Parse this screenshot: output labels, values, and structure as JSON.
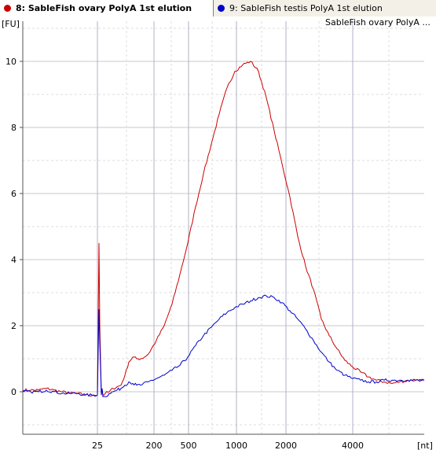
{
  "tabs": [
    {
      "label": "8: SableFish ovary PolyA 1st elution",
      "color": "#cc0000",
      "active": true
    },
    {
      "label": "9: SableFish testis PolyA 1st elution",
      "color": "#0000cc",
      "active": false
    }
  ],
  "chart_data": {
    "type": "line",
    "title": "SableFish ovary PolyA ...",
    "ylabel": "[FU]",
    "xlabel": "[nt]",
    "ylim": [
      -1.3,
      11.3
    ],
    "yticks": [
      0,
      2,
      4,
      6,
      8,
      10
    ],
    "xticks": [
      "25",
      "200",
      "500",
      "1000",
      "2000",
      "4000"
    ],
    "grid": true,
    "series": [
      {
        "name": "8: SableFish ovary PolyA 1st elution",
        "color": "#cc0000",
        "x": [
          0,
          10,
          20,
          30,
          40,
          50,
          60,
          70,
          80,
          90,
          95,
          97,
          98,
          100,
          101,
          102,
          103,
          105,
          110,
          115,
          120,
          125,
          130,
          135,
          140,
          145,
          150,
          155,
          160,
          170,
          180,
          190,
          200,
          210,
          220,
          230,
          240,
          250,
          260,
          270,
          280,
          290,
          300,
          310,
          320,
          330,
          340,
          350,
          360,
          370,
          380,
          390,
          400,
          410,
          420,
          430,
          440,
          450,
          460,
          470,
          480,
          490,
          500,
          511
        ],
        "y": [
          0.05,
          0.05,
          0.05,
          0.1,
          0.05,
          0.0,
          -0.05,
          -0.05,
          -0.1,
          -0.1,
          -0.1,
          4.5,
          2.0,
          -0.05,
          0.05,
          -0.1,
          -0.1,
          -0.05,
          0.0,
          0.1,
          0.15,
          0.2,
          0.5,
          0.9,
          1.05,
          1.0,
          1.0,
          1.05,
          1.15,
          1.55,
          2.0,
          2.65,
          3.55,
          4.5,
          5.6,
          6.6,
          7.5,
          8.4,
          9.2,
          9.7,
          9.9,
          10.0,
          9.7,
          8.9,
          7.9,
          6.9,
          5.9,
          4.7,
          3.8,
          3.1,
          2.2,
          1.7,
          1.3,
          0.95,
          0.75,
          0.6,
          0.45,
          0.35,
          0.3,
          0.25,
          0.3,
          0.35,
          0.35,
          0.35
        ]
      },
      {
        "name": "9: SableFish testis PolyA 1st elution",
        "color": "#0000cc",
        "x": [
          0,
          10,
          20,
          30,
          40,
          50,
          60,
          70,
          80,
          90,
          95,
          97,
          98,
          100,
          101,
          102,
          105,
          110,
          115,
          120,
          125,
          130,
          135,
          140,
          145,
          150,
          160,
          170,
          180,
          190,
          200,
          210,
          220,
          230,
          240,
          250,
          260,
          270,
          280,
          290,
          300,
          310,
          320,
          330,
          340,
          350,
          360,
          370,
          380,
          390,
          400,
          410,
          420,
          430,
          440,
          450,
          460,
          470,
          480,
          490,
          500,
          511
        ],
        "y": [
          0.0,
          0.0,
          0.0,
          0.05,
          0.0,
          -0.05,
          -0.05,
          -0.05,
          -0.1,
          -0.1,
          -0.1,
          2.5,
          1.5,
          -0.1,
          0.1,
          -0.15,
          -0.15,
          -0.05,
          0.0,
          0.05,
          0.1,
          0.2,
          0.3,
          0.25,
          0.2,
          0.2,
          0.3,
          0.4,
          0.5,
          0.65,
          0.8,
          1.05,
          1.4,
          1.7,
          1.95,
          2.2,
          2.4,
          2.55,
          2.65,
          2.75,
          2.85,
          2.9,
          2.85,
          2.7,
          2.45,
          2.2,
          1.9,
          1.55,
          1.2,
          0.9,
          0.65,
          0.5,
          0.4,
          0.35,
          0.3,
          0.3,
          0.35,
          0.35,
          0.35,
          0.35,
          0.35,
          0.35
        ]
      }
    ]
  }
}
